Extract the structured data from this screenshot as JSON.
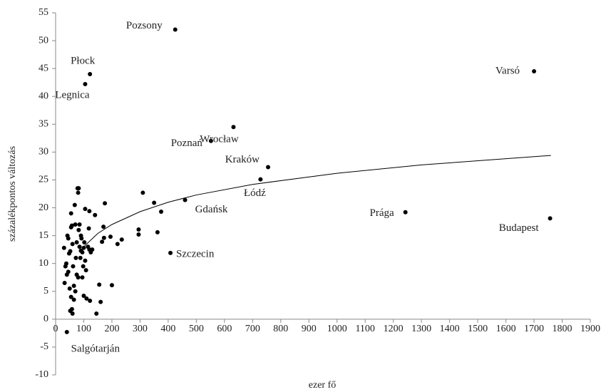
{
  "chart_data": {
    "type": "scatter",
    "xlabel": "ezer fő",
    "ylabel": "százalékpontos változás",
    "color": "#000000",
    "x": [
      425,
      122,
      105,
      1700,
      632,
      552,
      755,
      728,
      460,
      1243,
      1757,
      408,
      40,
      30,
      35,
      38,
      32,
      40,
      45,
      42,
      45,
      48,
      52,
      55,
      55,
      58,
      60,
      62,
      50,
      55,
      58,
      52,
      60,
      65,
      65,
      68,
      70,
      72,
      75,
      75,
      78,
      80,
      82,
      82,
      85,
      85,
      88,
      90,
      92,
      95,
      95,
      98,
      100,
      102,
      105,
      105,
      108,
      110,
      115,
      118,
      120,
      120,
      122,
      125,
      130,
      140,
      145,
      155,
      160,
      165,
      170,
      172,
      175,
      195,
      200,
      220,
      235,
      310,
      350,
      375,
      295,
      295,
      362,
      70,
      80,
      90,
      100
    ],
    "y": [
      52,
      44,
      42.2,
      44.5,
      34.5,
      32,
      27.3,
      25.1,
      21.4,
      19.2,
      18.1,
      11.9,
      -2.3,
      12.8,
      9.5,
      10,
      6.5,
      8,
      8.5,
      15,
      14.5,
      11.8,
      12.2,
      16.5,
      19,
      16.8,
      13.5,
      9.5,
      5.5,
      4,
      1.8,
      1.5,
      1,
      3.5,
      6,
      20.5,
      17,
      11,
      13.8,
      8,
      23.5,
      22.7,
      23.5,
      16,
      17,
      13,
      11,
      15,
      14.5,
      12,
      7.5,
      9.5,
      4.2,
      13.8,
      19.8,
      10.5,
      8.8,
      3.7,
      13,
      16.3,
      19.4,
      12.5,
      3.3,
      12,
      12.5,
      18.7,
      1,
      6.2,
      3.1,
      13.9,
      16.6,
      14.6,
      20.8,
      14.8,
      6.1,
      13.5,
      14.3,
      22.7,
      20.9,
      19.3,
      16.1,
      15.2,
      15.6,
      5,
      7.5,
      12.3,
      12.8
    ],
    "labels": [
      "Pozsony",
      "Płock",
      "Legnica",
      "Varsó",
      "Wrocław",
      "Poznań",
      "Kraków",
      "Łódź",
      "Gdańsk",
      "Prága",
      "Budapest",
      "Szczecin",
      "Salgótarján"
    ],
    "trendline": {
      "x": [
        100,
        150,
        200,
        300,
        400,
        500,
        700,
        1000,
        1300,
        1760
      ],
      "y": [
        13,
        15.4,
        17,
        19.3,
        21,
        22.3,
        24.2,
        26.2,
        27.7,
        29.4
      ]
    },
    "xlim": [
      0,
      1900
    ],
    "ylim": [
      -10,
      55
    ],
    "xticks": [
      0,
      100,
      200,
      300,
      400,
      500,
      600,
      700,
      800,
      900,
      1000,
      1100,
      1200,
      1300,
      1400,
      1500,
      1600,
      1700,
      1800,
      1900
    ],
    "yticks": [
      -10,
      -5,
      0,
      5,
      10,
      15,
      20,
      25,
      30,
      35,
      40,
      45,
      50,
      55
    ]
  }
}
